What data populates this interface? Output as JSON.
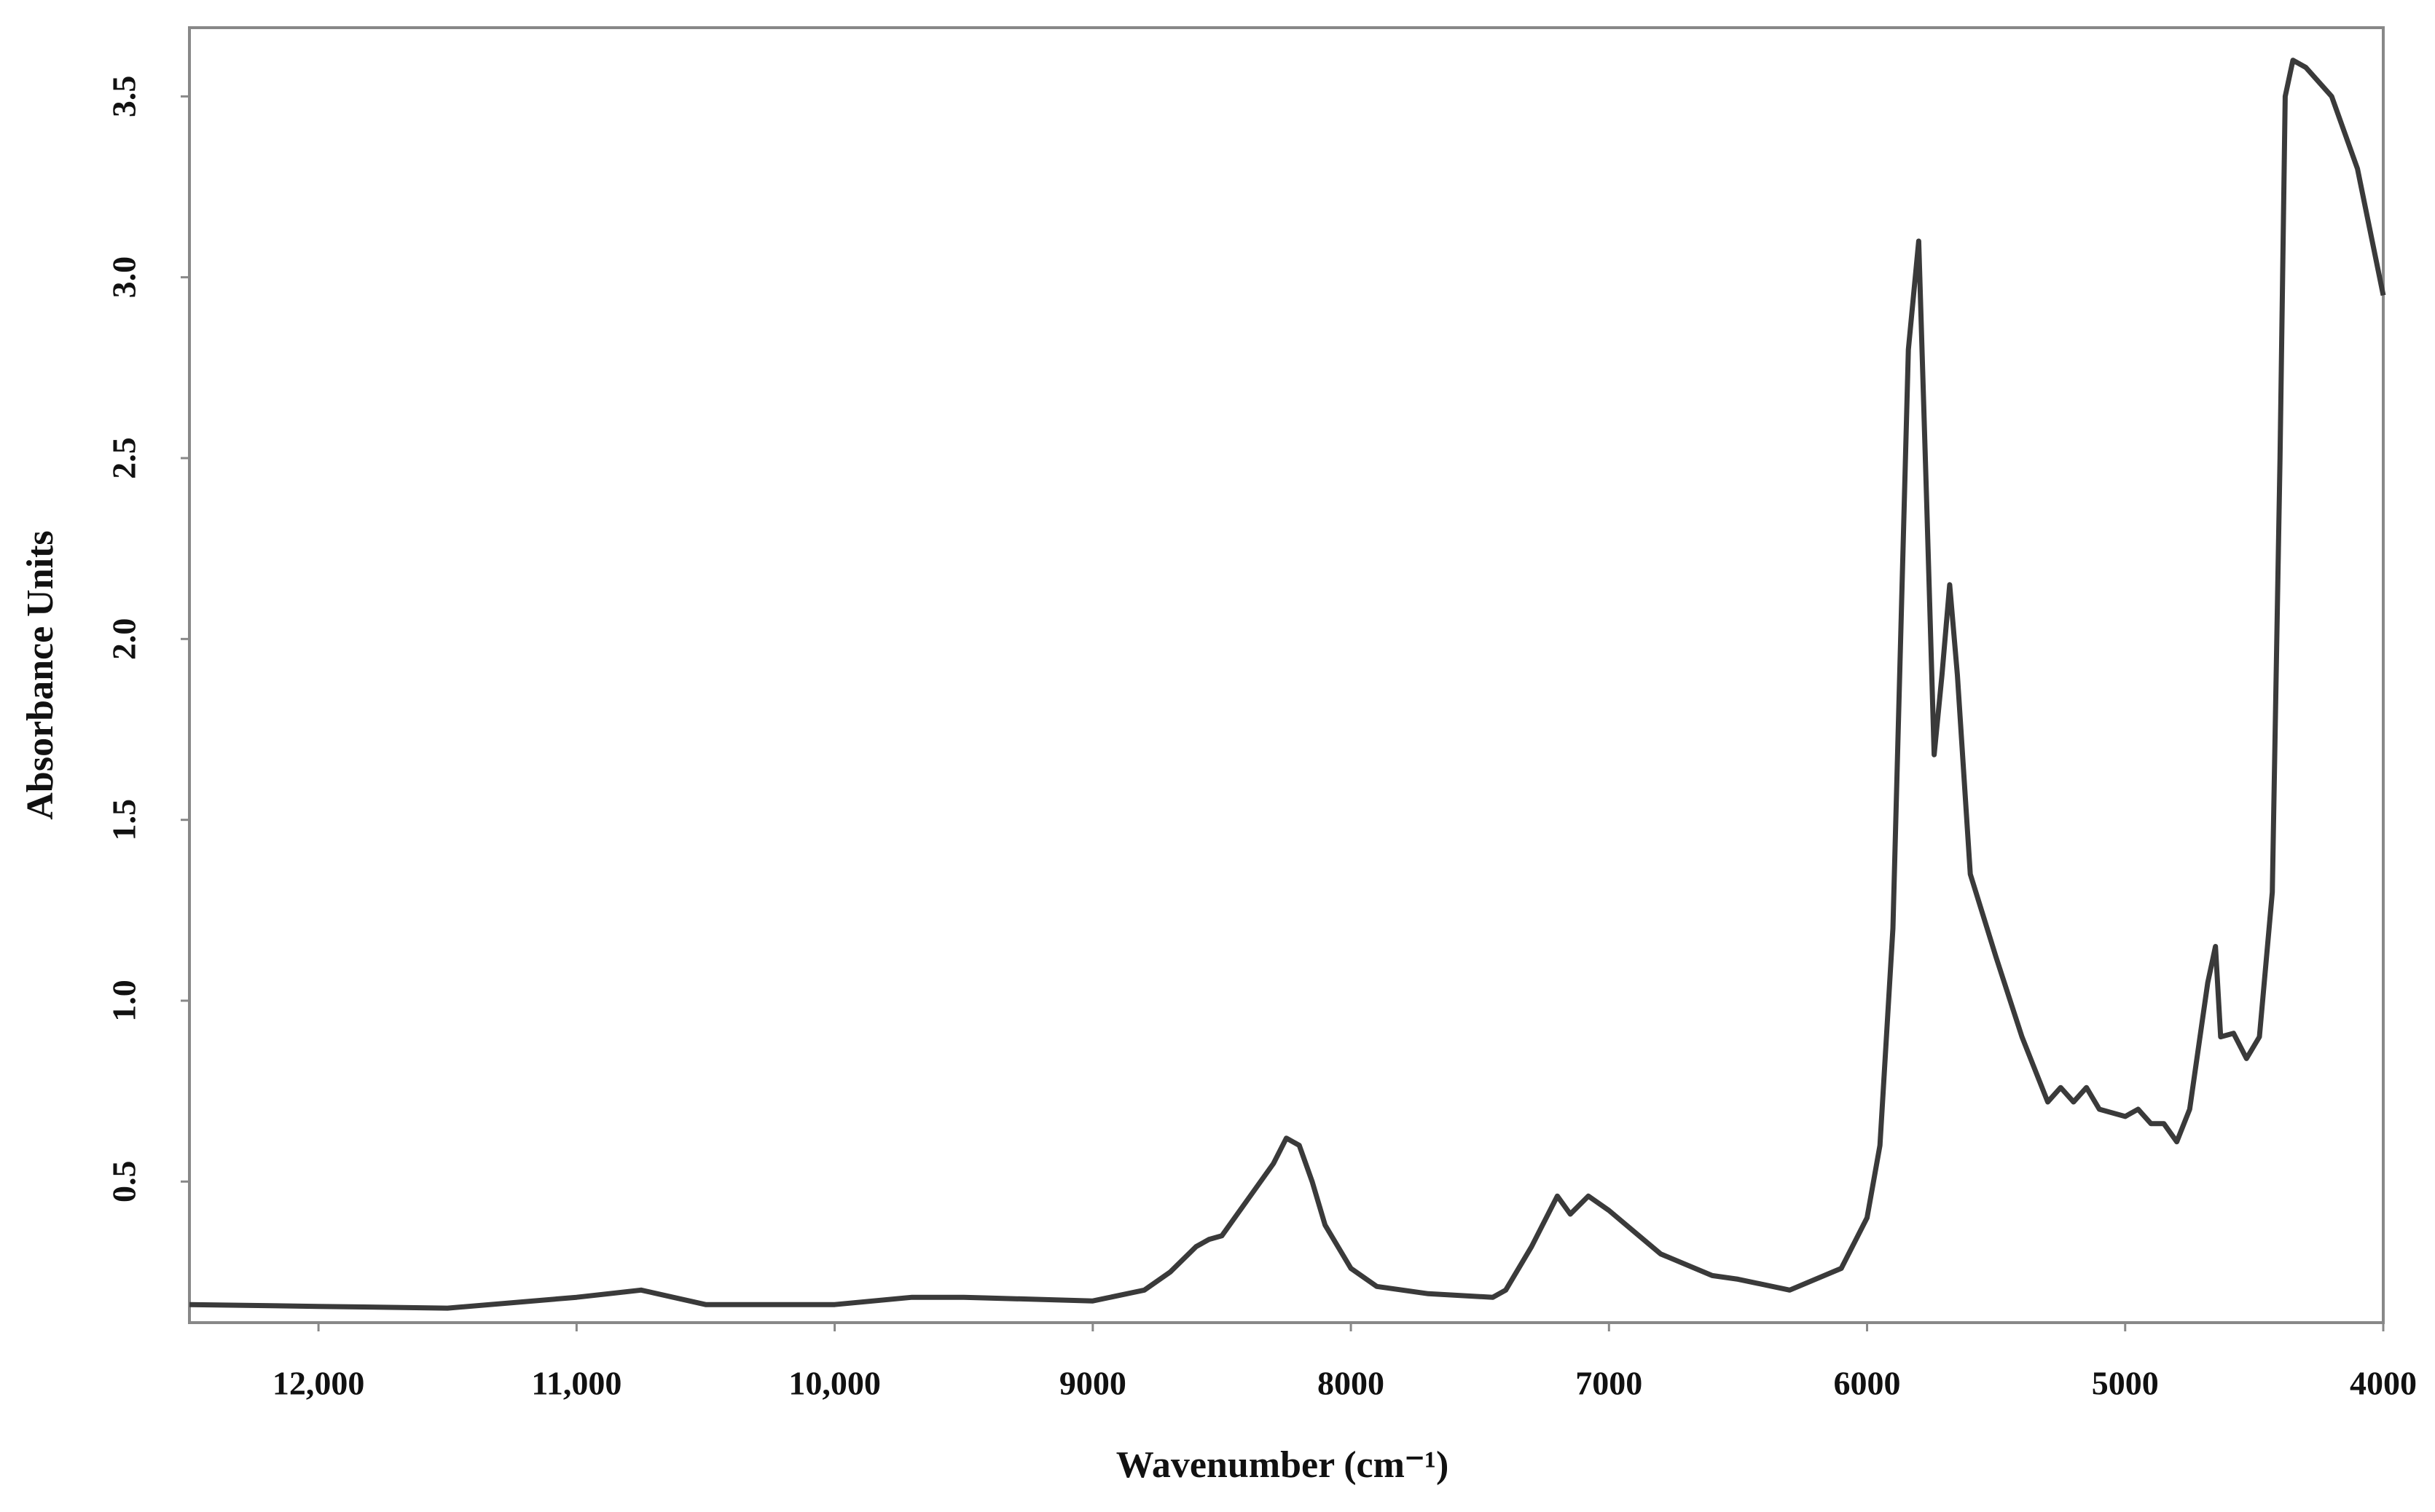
{
  "chart_data": {
    "type": "line",
    "x_label": "Wavenumber (cm⁻¹)",
    "y_label": "Absorbance Units",
    "xlim": [
      12500,
      4000
    ],
    "ylim": [
      0.11,
      3.69
    ],
    "xticks": [
      {
        "value": 12000,
        "label": "12,000"
      },
      {
        "value": 11000,
        "label": "11,000"
      },
      {
        "value": 10000,
        "label": "10,000"
      },
      9000,
      8000,
      7000,
      6000,
      5000,
      4000
    ],
    "yticks": [
      0.5,
      {
        "value": 1,
        "label": "1.0"
      },
      1.5,
      {
        "value": 2,
        "label": "2.0"
      },
      2.5,
      {
        "value": 3,
        "label": "3.0"
      },
      3.5
    ],
    "grid": false,
    "x": [
      12500,
      12000,
      11500,
      11000,
      10750,
      10500,
      10000,
      9700,
      9500,
      9000,
      8800,
      8700,
      8600,
      8550,
      8500,
      8400,
      8300,
      8250,
      8200,
      8150,
      8100,
      8000,
      7900,
      7700,
      7450,
      7400,
      7300,
      7200,
      7150,
      7080,
      7000,
      6900,
      6800,
      6600,
      6500,
      6300,
      6100,
      6000,
      5950,
      5900,
      5870,
      5840,
      5800,
      5770,
      5740,
      5710,
      5680,
      5650,
      5600,
      5500,
      5400,
      5300,
      5250,
      5200,
      5150,
      5100,
      5000,
      4950,
      4900,
      4850,
      4800,
      4750,
      4700,
      4680,
      4650,
      4630,
      4580,
      4530,
      4480,
      4430,
      4400,
      4380,
      4350,
      4300,
      4200,
      4100,
      4000
    ],
    "series": [
      {
        "color": "#3a3a3a",
        "values": [
          0.16,
          0.155,
          0.15,
          0.18,
          0.2,
          0.16,
          0.16,
          0.18,
          0.18,
          0.17,
          0.2,
          0.25,
          0.32,
          0.34,
          0.35,
          0.45,
          0.55,
          0.62,
          0.6,
          0.5,
          0.38,
          0.26,
          0.21,
          0.19,
          0.18,
          0.2,
          0.32,
          0.46,
          0.41,
          0.46,
          0.42,
          0.36,
          0.3,
          0.24,
          0.23,
          0.2,
          0.26,
          0.4,
          0.6,
          1.2,
          2.0,
          2.8,
          3.1,
          2.4,
          1.68,
          1.9,
          2.15,
          1.9,
          1.35,
          1.12,
          0.9,
          0.72,
          0.76,
          0.72,
          0.76,
          0.7,
          0.68,
          0.7,
          0.66,
          0.66,
          0.61,
          0.7,
          0.95,
          1.05,
          1.15,
          0.9,
          0.91,
          0.84,
          0.9,
          1.3,
          2.5,
          3.5,
          3.6,
          3.58,
          3.5,
          3.3,
          2.95
        ]
      }
    ]
  }
}
